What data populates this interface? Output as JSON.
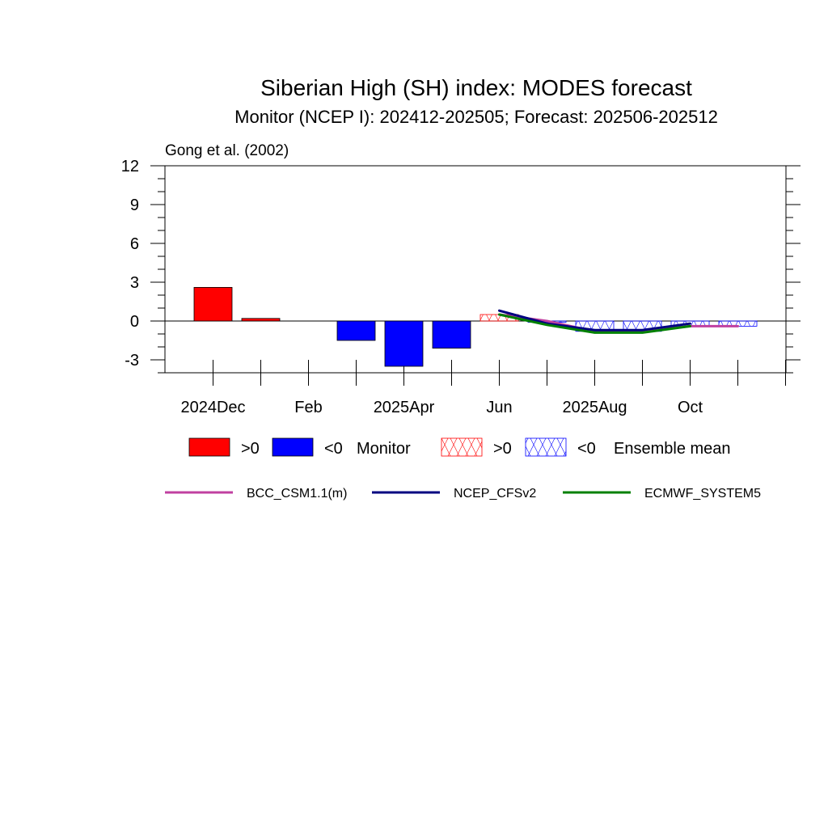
{
  "chart_data": {
    "type": "bar",
    "title": "Siberian High (SH) index: MODES forecast",
    "subtitle": "Monitor (NCEP I): 202412-202505; Forecast: 202506-202512",
    "reference": "Gong et al. (2002)",
    "xlabel": "",
    "ylabel": "",
    "ylim": [
      -4,
      12
    ],
    "yticks": [
      "12",
      "9",
      "6",
      "3",
      "0",
      "-3"
    ],
    "ytick_values": [
      12,
      9,
      6,
      3,
      0,
      -3
    ],
    "xticks": [
      "2024Dec",
      "Feb",
      "2025Apr",
      "Jun",
      "2025Aug",
      "Oct"
    ],
    "months": [
      "2024Dec",
      "2025Jan",
      "2025Feb",
      "2025Mar",
      "2025Apr",
      "2025May",
      "2025Jun",
      "2025Jul",
      "2025Aug",
      "2025Sep",
      "2025Oct",
      "2025Nov",
      "2025Dec"
    ],
    "monitor": {
      "label": "Monitor",
      "months": [
        "2024Dec",
        "2025Jan",
        "2025Feb",
        "2025Mar",
        "2025Apr",
        "2025May"
      ],
      "values": [
        2.6,
        0.2,
        0.0,
        -1.5,
        -3.5,
        -2.1
      ]
    },
    "ensemble_mean": {
      "label": "Ensemble mean",
      "months": [
        "2025Jun",
        "2025Jul",
        "2025Aug",
        "2025Sep",
        "2025Oct",
        "2025Nov"
      ],
      "values": [
        0.5,
        -0.1,
        -0.8,
        -0.8,
        -0.4,
        -0.4
      ]
    },
    "series": [
      {
        "name": "BCC_CSM1.1(m)",
        "color": "#c040a0",
        "months": [
          "2025Jun",
          "2025Jul",
          "2025Aug",
          "2025Sep",
          "2025Oct",
          "2025Nov"
        ],
        "values": [
          0.5,
          0.0,
          -0.8,
          -0.8,
          -0.4,
          -0.4
        ]
      },
      {
        "name": "NCEP_CFSv2",
        "color": "#000080",
        "months": [
          "2025Jun",
          "2025Jul",
          "2025Aug",
          "2025Sep",
          "2025Oct"
        ],
        "values": [
          0.8,
          -0.2,
          -0.7,
          -0.7,
          -0.2
        ]
      },
      {
        "name": "ECMWF_SYSTEM5",
        "color": "#008000",
        "months": [
          "2025Jun",
          "2025Jul",
          "2025Aug",
          "2025Sep",
          "2025Oct"
        ],
        "values": [
          0.5,
          -0.3,
          -0.9,
          -0.9,
          -0.4
        ]
      }
    ],
    "legend": {
      "pos_label": ">0",
      "neg_label": "<0",
      "pos_color": "#ff0000",
      "neg_color": "#0000ff"
    },
    "grid": false,
    "legend_position": "bottom"
  }
}
